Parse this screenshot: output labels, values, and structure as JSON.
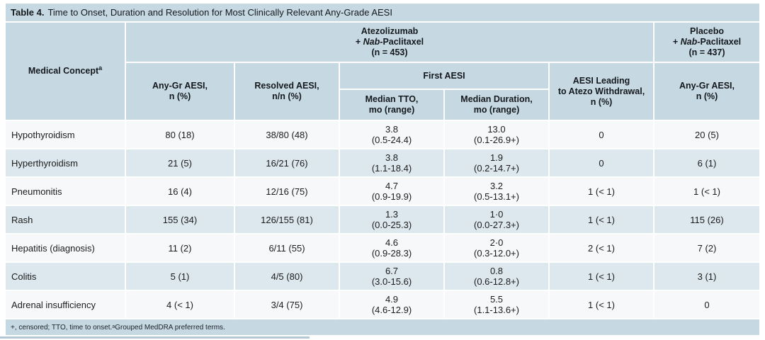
{
  "colors": {
    "band_blue": "#c6d9e3",
    "row_even": "#dce7ee",
    "row_odd": "#f6f8fa",
    "text": "#1c1c1c"
  },
  "title": {
    "bold": "Table 4.",
    "rest": "Time to Onset, Duration and Resolution for Most Clinically Relevant Any-Grade AESI"
  },
  "header": {
    "medical_concept": "Medical Concept",
    "medical_concept_sup": "a",
    "atezo": {
      "line1": "Atezolizumab",
      "plus": "+ ",
      "nab": "Nab",
      "pac": "-Paclitaxel",
      "n": "(n = 453)"
    },
    "placebo": {
      "line1": "Placebo",
      "plus": "+ ",
      "nab": "Nab",
      "pac": "-Paclitaxel",
      "n": "(n = 437)"
    },
    "any_gr": "Any-Gr AESI,\nn (%)",
    "resolved": "Resolved AESI,\nn/n (%)",
    "first_aesi": "First AESI",
    "median_tto": "Median TTO,\nmo (range)",
    "median_duration": "Median Duration,\nmo (range)",
    "withdrawal": "AESI Leading\nto Atezo Withdrawal,\nn (%)",
    "placebo_any_gr": "Any-Gr AESI,\nn (%)"
  },
  "rows": [
    {
      "concept": "Hypothyroidism",
      "any_gr": "80 (18)",
      "resolved": "38/80 (48)",
      "tto": "3.8\n(0.5-24.4)",
      "duration": "13.0\n(0.1-26.9+)",
      "withdrawal": "0",
      "placebo": "20 (5)"
    },
    {
      "concept": "Hyperthyroidism",
      "any_gr": "21 (5)",
      "resolved": "16/21 (76)",
      "tto": "3.8\n(1.1-18.4)",
      "duration": "1.9\n(0.2-14.7+)",
      "withdrawal": "0",
      "placebo": "6 (1)"
    },
    {
      "concept": "Pneumonitis",
      "any_gr": "16 (4)",
      "resolved": "12/16 (75)",
      "tto": "4.7\n(0.9-19.9)",
      "duration": "3.2\n(0.5-13.1+)",
      "withdrawal": "1 (< 1)",
      "placebo": "1 (< 1)"
    },
    {
      "concept": "Rash",
      "any_gr": "155 (34)",
      "resolved": "126/155 (81)",
      "tto": "1.3\n(0.0-25.3)",
      "duration": "1·0\n(0.0-27.3+)",
      "withdrawal": "1 (< 1)",
      "placebo": "115 (26)"
    },
    {
      "concept": "Hepatitis (diagnosis)",
      "any_gr": "11 (2)",
      "resolved": "6/11 (55)",
      "tto": "4.6\n(0.9-28.3)",
      "duration": "2·0\n(0.3-12.0+)",
      "withdrawal": "2 (< 1)",
      "placebo": "7 (2)"
    },
    {
      "concept": "Colitis",
      "any_gr": "5 (1)",
      "resolved": "4/5 (80)",
      "tto": "6.7\n(3.0-15.6)",
      "duration": "0.8\n(0.6-12.8+)",
      "withdrawal": "1 (< 1)",
      "placebo": "3 (1)"
    },
    {
      "concept": "Adrenal insufficiency",
      "any_gr": "4 (< 1)",
      "resolved": "3/4 (75)",
      "tto": "4.9\n(4.6-12.9)",
      "duration": "5.5\n(1.1-13.6+)",
      "withdrawal": "1 (< 1)",
      "placebo": "0"
    }
  ],
  "footnote": {
    "pre": "+, censored; TTO, time to onset. ",
    "sup": "a",
    "post": " Grouped MedDRA preferred terms."
  }
}
